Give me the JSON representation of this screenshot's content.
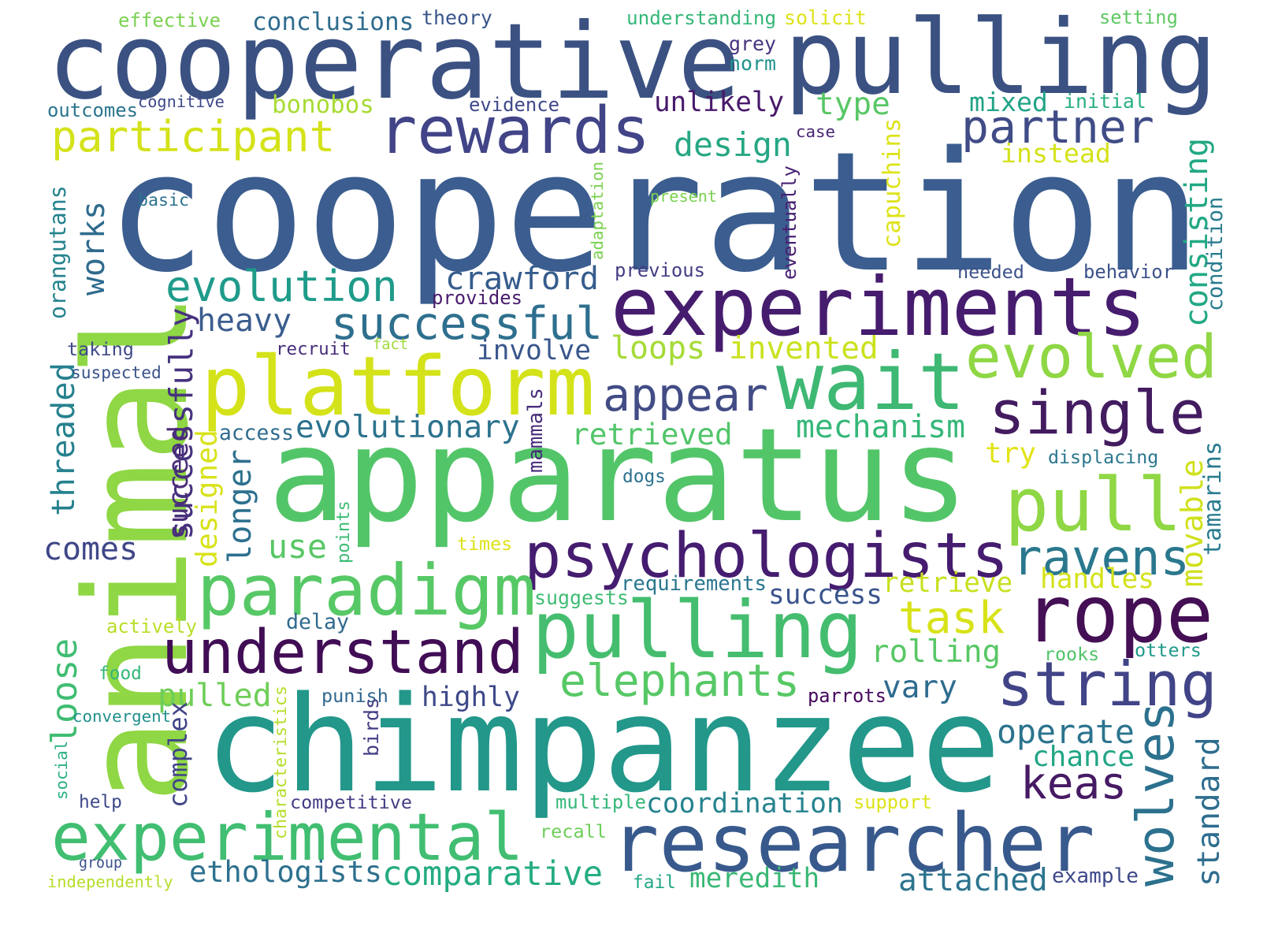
{
  "words": [
    {
      "text": "cooperation",
      "color": "#3b5d8f"
    },
    {
      "text": "animal",
      "color": "#8fd744"
    },
    {
      "text": "apparatus",
      "color": "#53c569"
    },
    {
      "text": "chimpanzee",
      "color": "#22978a"
    },
    {
      "text": "cooperative",
      "color": "#3b5182"
    },
    {
      "text": "pulling",
      "color": "#3b5182"
    },
    {
      "text": "experiments",
      "color": "#461c6e"
    },
    {
      "text": "psychologists",
      "color": "#451c6f"
    },
    {
      "text": "pulling",
      "color": "#45bd6f"
    },
    {
      "text": "researcher",
      "color": "#38598c"
    },
    {
      "text": "platform",
      "color": "#d4e21a"
    },
    {
      "text": "wait",
      "color": "#3eb873"
    },
    {
      "text": "rope",
      "color": "#440f54"
    },
    {
      "text": "understand",
      "color": "#410d55"
    },
    {
      "text": "experimental",
      "color": "#41be71"
    },
    {
      "text": "paradigm",
      "color": "#57c866"
    },
    {
      "text": "rewards",
      "color": "#414487"
    },
    {
      "text": "evolved",
      "color": "#8fd744"
    },
    {
      "text": "single",
      "color": "#431c60"
    },
    {
      "text": "pull",
      "color": "#8fd744"
    },
    {
      "text": "string",
      "color": "#414487"
    },
    {
      "text": "participant",
      "color": "#d4e21a"
    },
    {
      "text": "partner",
      "color": "#404c86"
    },
    {
      "text": "evolution",
      "color": "#1f9b8a"
    },
    {
      "text": "successful",
      "color": "#2e6f8e"
    },
    {
      "text": "appear",
      "color": "#424c85"
    },
    {
      "text": "elephants",
      "color": "#57c866"
    },
    {
      "text": "ravens",
      "color": "#2a788e"
    },
    {
      "text": "wolves",
      "color": "#2c718e"
    },
    {
      "text": "keas",
      "color": "#471a64"
    },
    {
      "text": "task",
      "color": "#d8e219"
    },
    {
      "text": "crawford",
      "color": "#365c8d"
    },
    {
      "text": "design",
      "color": "#26a784"
    },
    {
      "text": "unlikely",
      "color": "#48196b"
    },
    {
      "text": "type",
      "color": "#58c765"
    },
    {
      "text": "heavy",
      "color": "#3b5d8f"
    },
    {
      "text": "loops",
      "color": "#a5db36"
    },
    {
      "text": "invented",
      "color": "#cbe11e"
    },
    {
      "text": "involve",
      "color": "#39568c"
    },
    {
      "text": "evolutionary",
      "color": "#2c728e"
    },
    {
      "text": "retrieved",
      "color": "#52c569"
    },
    {
      "text": "mechanism",
      "color": "#35b779"
    },
    {
      "text": "try",
      "color": "#e2e418"
    },
    {
      "text": "successfully",
      "color": "#46327e"
    },
    {
      "text": "works",
      "color": "#2f6b8e"
    },
    {
      "text": "consisting",
      "color": "#22a884"
    },
    {
      "text": "instead",
      "color": "#d4e21a"
    },
    {
      "text": "comparative",
      "color": "#25ac82"
    },
    {
      "text": "ethologists",
      "color": "#2d708e"
    },
    {
      "text": "meredith",
      "color": "#3ab875"
    },
    {
      "text": "attached",
      "color": "#2c738e"
    },
    {
      "text": "coordination",
      "color": "#25838e"
    },
    {
      "text": "standard",
      "color": "#2e6d8e"
    },
    {
      "text": "operate",
      "color": "#2b748e"
    },
    {
      "text": "chance",
      "color": "#21a585"
    },
    {
      "text": "rolling",
      "color": "#58c765"
    },
    {
      "text": "retrieve",
      "color": "#c8e020"
    },
    {
      "text": "handles",
      "color": "#d4e21a"
    },
    {
      "text": "success",
      "color": "#3a548c"
    },
    {
      "text": "vary",
      "color": "#2e6b8e"
    },
    {
      "text": "highly",
      "color": "#3e4989"
    },
    {
      "text": "pulled",
      "color": "#6ece58"
    },
    {
      "text": "complex",
      "color": "#414487"
    },
    {
      "text": "loose",
      "color": "#40bd72"
    },
    {
      "text": "comes",
      "color": "#3f4788"
    },
    {
      "text": "use",
      "color": "#58c765"
    },
    {
      "text": "longer",
      "color": "#2d708e"
    },
    {
      "text": "designed",
      "color": "#d8e219"
    },
    {
      "text": "succeed",
      "color": "#4b2c7a"
    },
    {
      "text": "threaded",
      "color": "#26818e"
    },
    {
      "text": "orangutans",
      "color": "#25838e"
    },
    {
      "text": "movable",
      "color": "#d0e11c"
    },
    {
      "text": "tamarins",
      "color": "#287c8e"
    },
    {
      "text": "bonobos",
      "color": "#a8db34"
    },
    {
      "text": "conclusions",
      "color": "#2f6c8e"
    },
    {
      "text": "effective",
      "color": "#7ad151"
    },
    {
      "text": "theory",
      "color": "#39568c"
    },
    {
      "text": "understanding",
      "color": "#35b779"
    },
    {
      "text": "solicit",
      "color": "#dde318"
    },
    {
      "text": "setting",
      "color": "#5ec962"
    },
    {
      "text": "grey",
      "color": "#46337f"
    },
    {
      "text": "norm",
      "color": "#20928c"
    },
    {
      "text": "mixed",
      "color": "#20a386"
    },
    {
      "text": "initial",
      "color": "#29af7f"
    },
    {
      "text": "outcomes",
      "color": "#2b758e"
    },
    {
      "text": "cognitive",
      "color": "#3e4989"
    },
    {
      "text": "evidence",
      "color": "#3f4889"
    },
    {
      "text": "case",
      "color": "#482576"
    },
    {
      "text": "capuchins",
      "color": "#dde318"
    },
    {
      "text": "basic",
      "color": "#2c728e"
    },
    {
      "text": "adaptation",
      "color": "#7ad151"
    },
    {
      "text": "present",
      "color": "#7ad151"
    },
    {
      "text": "eventually",
      "color": "#482173"
    },
    {
      "text": "condition",
      "color": "#287c8e"
    },
    {
      "text": "previous",
      "color": "#433e85"
    },
    {
      "text": "needed",
      "color": "#3b528b"
    },
    {
      "text": "behavior",
      "color": "#3b528b"
    },
    {
      "text": "provides",
      "color": "#481b6d"
    },
    {
      "text": "recruit",
      "color": "#472d7b"
    },
    {
      "text": "fact",
      "color": "#a0da39"
    },
    {
      "text": "taking",
      "color": "#3e4a89"
    },
    {
      "text": "suspected",
      "color": "#3a538b"
    },
    {
      "text": "access",
      "color": "#2f6b8e"
    },
    {
      "text": "mammals",
      "color": "#472c7a"
    },
    {
      "text": "displacing",
      "color": "#2a778e"
    },
    {
      "text": "dogs",
      "color": "#2c728e"
    },
    {
      "text": "points",
      "color": "#3dbc74"
    },
    {
      "text": "times",
      "color": "#dde318"
    },
    {
      "text": "requirements",
      "color": "#2a768e"
    },
    {
      "text": "suggests",
      "color": "#3fbc73"
    },
    {
      "text": "actively",
      "color": "#b8de29"
    },
    {
      "text": "delay",
      "color": "#306a8e"
    },
    {
      "text": "food",
      "color": "#35b779"
    },
    {
      "text": "rooks",
      "color": "#50c46a"
    },
    {
      "text": "otters",
      "color": "#1f998a"
    },
    {
      "text": "punish",
      "color": "#31678e"
    },
    {
      "text": "parrots",
      "color": "#46085c"
    },
    {
      "text": "convergent",
      "color": "#21908d"
    },
    {
      "text": "characteristics",
      "color": "#b5de2b"
    },
    {
      "text": "birds",
      "color": "#433e85"
    },
    {
      "text": "social",
      "color": "#2ab07f"
    },
    {
      "text": "help",
      "color": "#3e4989"
    },
    {
      "text": "competitive",
      "color": "#433d84"
    },
    {
      "text": "multiple",
      "color": "#35b779"
    },
    {
      "text": "support",
      "color": "#dde318"
    },
    {
      "text": "recall",
      "color": "#6ece58"
    },
    {
      "text": "group",
      "color": "#3b528b"
    },
    {
      "text": "independently",
      "color": "#b5de2b"
    },
    {
      "text": "fail",
      "color": "#22a785"
    },
    {
      "text": "example",
      "color": "#3e4989"
    }
  ]
}
